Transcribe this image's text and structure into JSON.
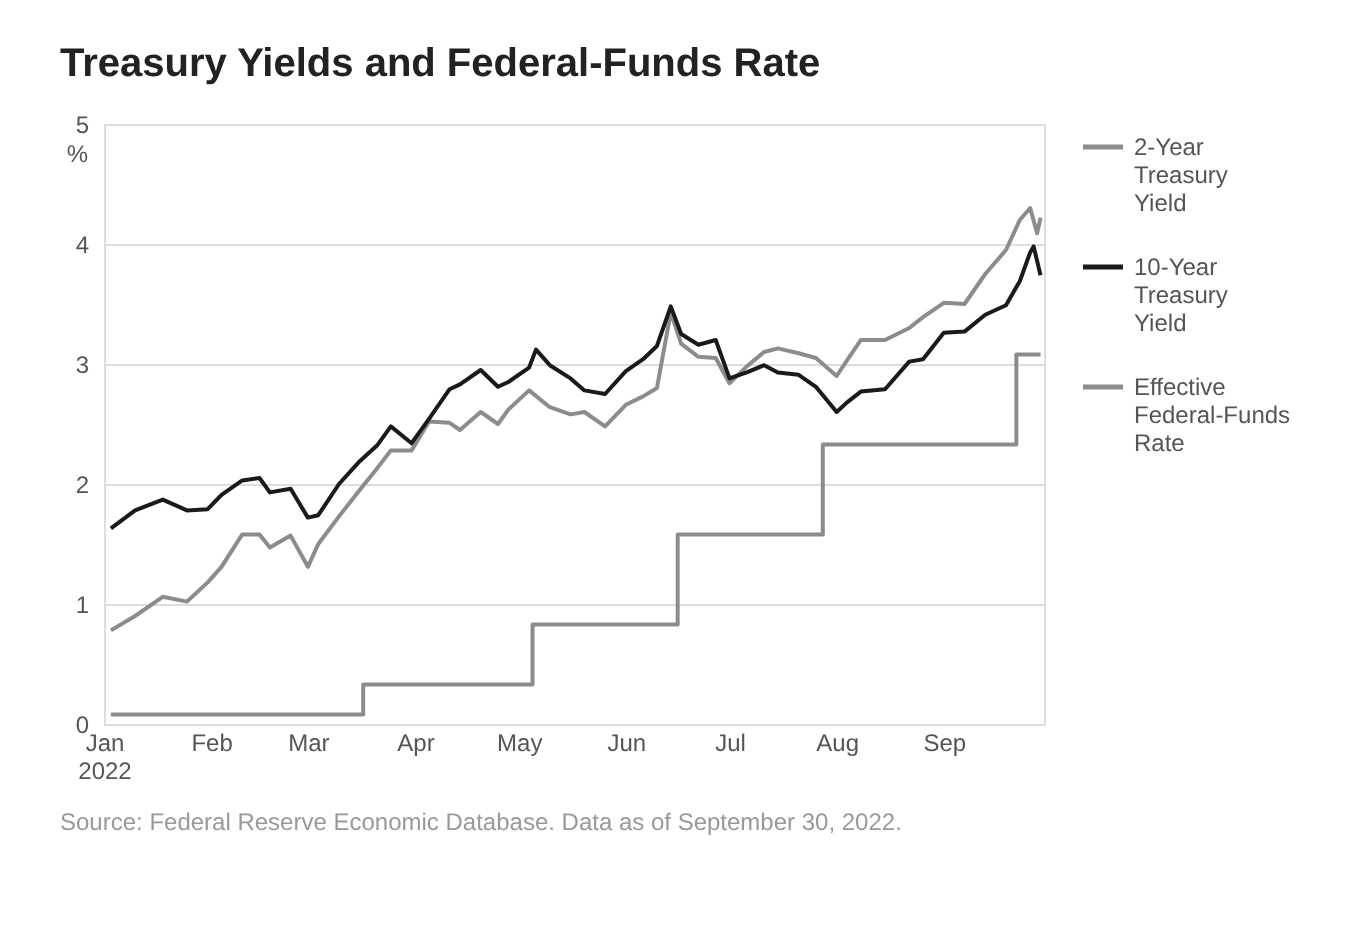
{
  "chart_data": {
    "type": "line",
    "title": "Treasury Yields and Federal-Funds Rate",
    "ylabel": "%",
    "xlim": [
      "2022-01-01",
      "2022-09-30"
    ],
    "xticks": [
      {
        "value": "2022-01-01",
        "label": "Jan 2022"
      },
      {
        "value": "2022-02-01",
        "label": "Feb"
      },
      {
        "value": "2022-03-01",
        "label": "Mar"
      },
      {
        "value": "2022-04-01",
        "label": "Apr"
      },
      {
        "value": "2022-05-01",
        "label": "May"
      },
      {
        "value": "2022-06-01",
        "label": "Jun"
      },
      {
        "value": "2022-07-01",
        "label": "Jul"
      },
      {
        "value": "2022-08-01",
        "label": "Aug"
      },
      {
        "value": "2022-09-01",
        "label": "Sep"
      }
    ],
    "ylim": [
      0,
      5
    ],
    "yticks": [
      0,
      1,
      2,
      3,
      4,
      5
    ],
    "grid": "y",
    "legend": "right",
    "series": [
      {
        "name": "2-Year Treasury Yield",
        "type": "line",
        "color": "#8c8c8c",
        "x": [
          "2022-01-03",
          "2022-01-10",
          "2022-01-18",
          "2022-01-25",
          "2022-01-31",
          "2022-02-04",
          "2022-02-10",
          "2022-02-15",
          "2022-02-18",
          "2022-02-24",
          "2022-03-01",
          "2022-03-04",
          "2022-03-10",
          "2022-03-16",
          "2022-03-21",
          "2022-03-25",
          "2022-03-31",
          "2022-04-05",
          "2022-04-11",
          "2022-04-14",
          "2022-04-20",
          "2022-04-25",
          "2022-04-28",
          "2022-05-04",
          "2022-05-10",
          "2022-05-16",
          "2022-05-20",
          "2022-05-26",
          "2022-06-01",
          "2022-06-06",
          "2022-06-10",
          "2022-06-14",
          "2022-06-17",
          "2022-06-22",
          "2022-06-27",
          "2022-07-01",
          "2022-07-06",
          "2022-07-11",
          "2022-07-15",
          "2022-07-21",
          "2022-07-26",
          "2022-08-01",
          "2022-08-04",
          "2022-08-08",
          "2022-08-15",
          "2022-08-22",
          "2022-08-26",
          "2022-09-01",
          "2022-09-07",
          "2022-09-13",
          "2022-09-19",
          "2022-09-23",
          "2022-09-26",
          "2022-09-28",
          "2022-09-29"
        ],
        "values": [
          0.78,
          0.9,
          1.06,
          1.02,
          1.18,
          1.31,
          1.58,
          1.58,
          1.47,
          1.57,
          1.31,
          1.5,
          1.73,
          1.95,
          2.13,
          2.28,
          2.28,
          2.52,
          2.51,
          2.45,
          2.6,
          2.5,
          2.62,
          2.78,
          2.64,
          2.58,
          2.6,
          2.48,
          2.66,
          2.73,
          2.8,
          3.43,
          3.17,
          3.06,
          3.05,
          2.84,
          2.98,
          3.1,
          3.13,
          3.09,
          3.05,
          2.9,
          3.03,
          3.2,
          3.2,
          3.3,
          3.39,
          3.51,
          3.5,
          3.75,
          3.95,
          4.2,
          4.3,
          4.09,
          4.22
        ]
      },
      {
        "name": "10-Year Treasury Yield",
        "type": "line",
        "color": "#1a1a1a",
        "x": [
          "2022-01-03",
          "2022-01-10",
          "2022-01-18",
          "2022-01-25",
          "2022-01-31",
          "2022-02-04",
          "2022-02-10",
          "2022-02-15",
          "2022-02-18",
          "2022-02-24",
          "2022-03-01",
          "2022-03-04",
          "2022-03-10",
          "2022-03-16",
          "2022-03-21",
          "2022-03-25",
          "2022-03-31",
          "2022-04-05",
          "2022-04-11",
          "2022-04-14",
          "2022-04-20",
          "2022-04-25",
          "2022-04-28",
          "2022-05-04",
          "2022-05-06",
          "2022-05-10",
          "2022-05-16",
          "2022-05-20",
          "2022-05-26",
          "2022-06-01",
          "2022-06-06",
          "2022-06-10",
          "2022-06-14",
          "2022-06-17",
          "2022-06-22",
          "2022-06-27",
          "2022-07-01",
          "2022-07-06",
          "2022-07-11",
          "2022-07-15",
          "2022-07-21",
          "2022-07-26",
          "2022-08-01",
          "2022-08-04",
          "2022-08-08",
          "2022-08-15",
          "2022-08-22",
          "2022-08-26",
          "2022-09-01",
          "2022-09-07",
          "2022-09-13",
          "2022-09-19",
          "2022-09-23",
          "2022-09-26",
          "2022-09-27",
          "2022-09-29"
        ],
        "values": [
          1.63,
          1.78,
          1.87,
          1.78,
          1.79,
          1.91,
          2.03,
          2.05,
          1.93,
          1.96,
          1.72,
          1.74,
          2.0,
          2.19,
          2.32,
          2.48,
          2.34,
          2.54,
          2.79,
          2.83,
          2.95,
          2.81,
          2.85,
          2.97,
          3.12,
          2.99,
          2.88,
          2.78,
          2.75,
          2.94,
          3.04,
          3.15,
          3.48,
          3.25,
          3.16,
          3.2,
          2.88,
          2.93,
          2.99,
          2.93,
          2.91,
          2.81,
          2.6,
          2.68,
          2.77,
          2.79,
          3.02,
          3.04,
          3.26,
          3.27,
          3.41,
          3.49,
          3.69,
          3.93,
          3.98,
          3.74
        ]
      },
      {
        "name": "Effective Federal-Funds Rate",
        "type": "step",
        "color": "#8c8c8c",
        "x": [
          "2022-01-03",
          "2022-03-17",
          "2022-05-05",
          "2022-06-16",
          "2022-07-28",
          "2022-09-22",
          "2022-09-29"
        ],
        "values": [
          0.08,
          0.33,
          0.83,
          1.58,
          2.33,
          3.08,
          3.08
        ]
      }
    ],
    "annotations": [
      "Source: Federal Reserve Economic Database. Data as of September 30, 2022."
    ]
  }
}
